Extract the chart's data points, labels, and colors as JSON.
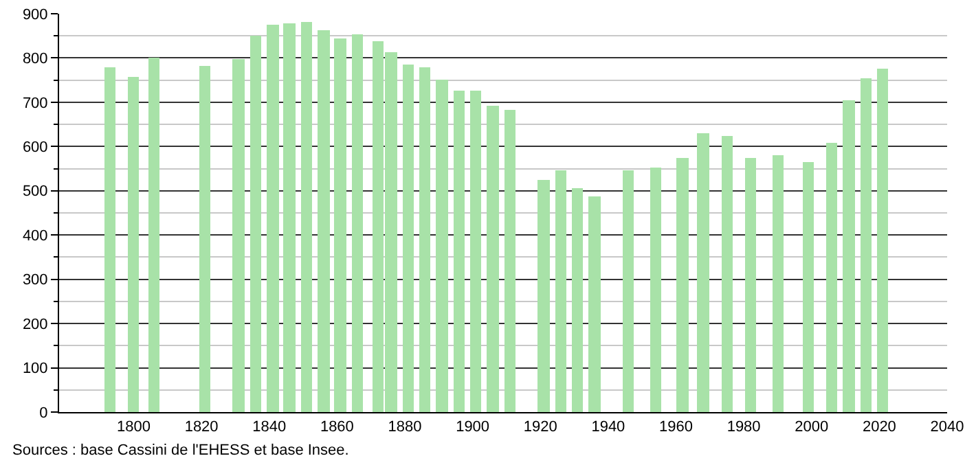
{
  "chart_data": {
    "type": "bar",
    "color": "#a8e2a8",
    "x": [
      1793,
      1800,
      1806,
      1821,
      1831,
      1836,
      1841,
      1846,
      1851,
      1856,
      1861,
      1866,
      1872,
      1876,
      1881,
      1886,
      1891,
      1896,
      1901,
      1906,
      1911,
      1921,
      1926,
      1931,
      1936,
      1946,
      1954,
      1962,
      1968,
      1975,
      1982,
      1990,
      1999,
      2006,
      2011,
      2016,
      2021
    ],
    "values": [
      778,
      758,
      800,
      782,
      798,
      850,
      874,
      878,
      882,
      863,
      844,
      853,
      837,
      812,
      784,
      778,
      750,
      726,
      726,
      691,
      683,
      524,
      547,
      507,
      486,
      547,
      552,
      574,
      630,
      624,
      574,
      579,
      565,
      607,
      704,
      754,
      776
    ],
    "xlim": [
      1778,
      2040
    ],
    "xticks": [
      1800,
      1820,
      1840,
      1860,
      1880,
      1900,
      1920,
      1940,
      1960,
      1980,
      2000,
      2020,
      2040
    ],
    "ylim": [
      0,
      900
    ],
    "yticks": [
      0,
      {
        "value": 50,
        "label": null
      },
      100,
      {
        "value": 150,
        "label": null
      },
      200,
      {
        "value": 250,
        "label": null
      },
      300,
      {
        "value": 350,
        "label": null
      },
      400,
      {
        "value": 450,
        "label": null
      },
      500,
      {
        "value": 550,
        "label": null
      },
      600,
      {
        "value": 650,
        "label": null
      },
      700,
      {
        "value": 750,
        "label": null
      },
      800,
      {
        "value": 850,
        "label": null
      },
      900
    ],
    "grid": "y",
    "legend": false,
    "annotations": [
      "Sources : base Cassini de l'EHESS et base Insee."
    ]
  }
}
